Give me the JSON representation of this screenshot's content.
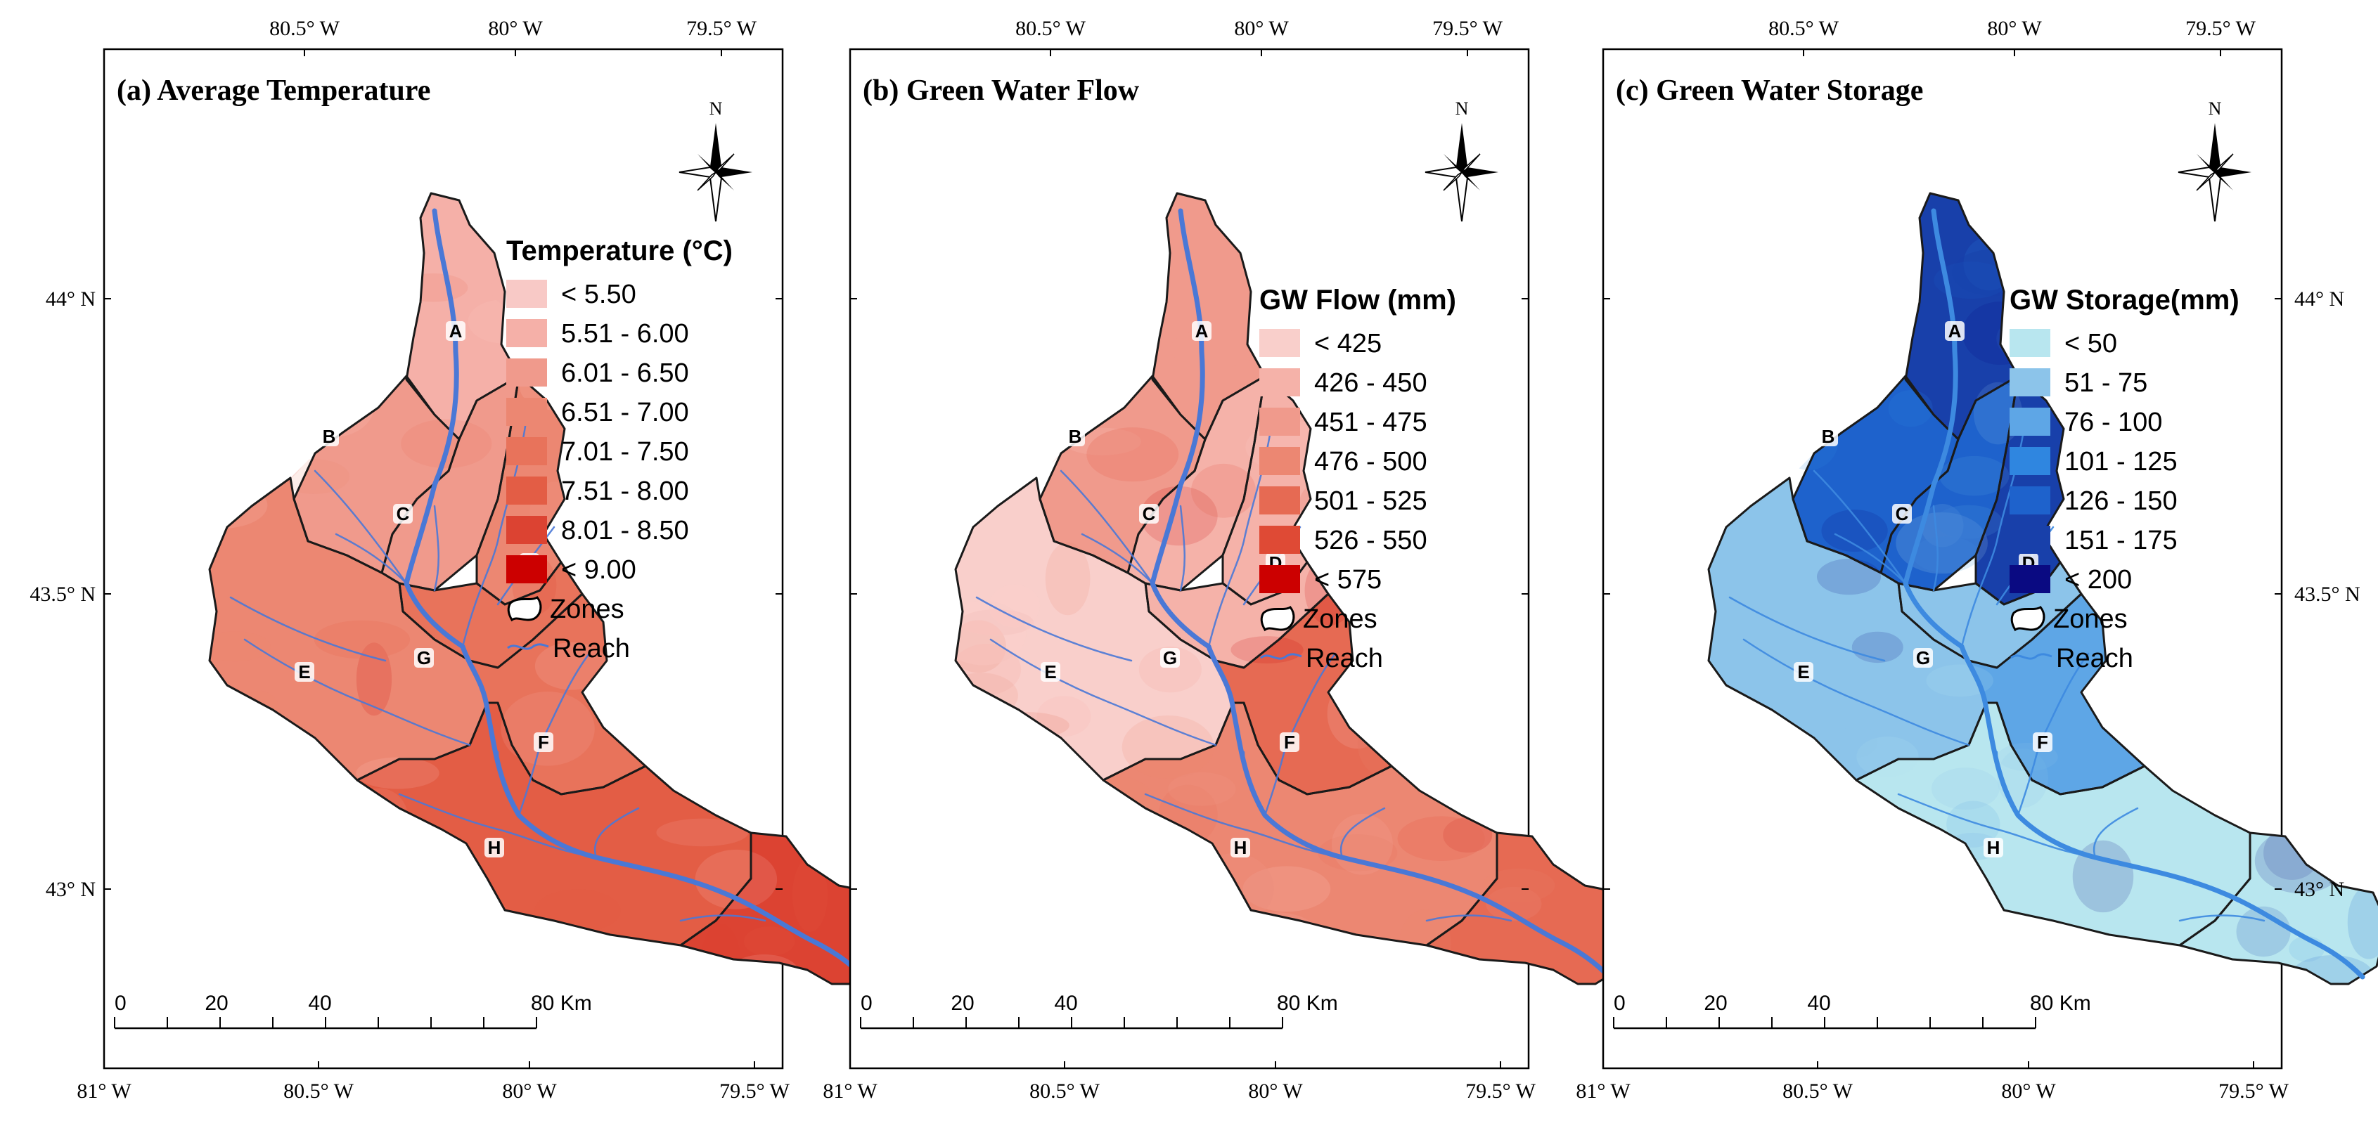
{
  "panels": [
    {
      "key": "a",
      "title": "(a) Average Temperature",
      "legend_title": "Temperature (°C)",
      "classes": [
        "< 5.50",
        "5.51 - 6.00",
        "6.01 - 6.50",
        "6.51 - 7.00",
        "7.01 - 7.50",
        "7.51 - 8.00",
        "8.01 - 8.50",
        "< 9.00"
      ],
      "palette": [
        "#f8c9c6",
        "#f5b0a8",
        "#f09a8c",
        "#ec8772",
        "#e8735b",
        "#e35d45",
        "#dc4332",
        "#cc0000"
      ],
      "reach_color": "#4a78d6",
      "top_ticks": [
        "80.5° W",
        "80° W",
        "79.5° W"
      ],
      "bottom_ticks": [
        "81° W",
        "80.5° W",
        "80° W",
        "79.5° W"
      ],
      "left_ticks": [
        "44° N",
        "43.5° N",
        "43° N"
      ],
      "right_ticks": [],
      "scale_labels": [
        "0",
        "20",
        "40",
        "80 Km"
      ],
      "zones_label": "Zones",
      "reach_label": "Reach",
      "north_label": "N"
    },
    {
      "key": "b",
      "title": "(b) Green Water Flow",
      "legend_title": "GW Flow (mm)",
      "classes": [
        "< 425",
        "426 - 450",
        "451 - 475",
        "476 - 500",
        "501 - 525",
        "526 - 550",
        "< 575"
      ],
      "palette": [
        "#f9cfcb",
        "#f5b2a9",
        "#f09a8c",
        "#ec8772",
        "#e66a53",
        "#df4a35",
        "#cc0000"
      ],
      "reach_color": "#4a78d6",
      "top_ticks": [
        "80.5° W",
        "80° W",
        "79.5° W"
      ],
      "bottom_ticks": [
        "81° W",
        "80.5° W",
        "80° W",
        "79.5° W"
      ],
      "left_ticks": [],
      "right_ticks": [],
      "scale_labels": [
        "0",
        "20",
        "40",
        "80 Km"
      ],
      "zones_label": "Zones",
      "reach_label": "Reach",
      "north_label": "N"
    },
    {
      "key": "c",
      "title": "(c) Green Water Storage",
      "legend_title": "GW Storage(mm)",
      "classes": [
        "< 50",
        "51 - 75",
        "76 - 100",
        "101 - 125",
        "126 - 150",
        "151 - 175",
        "< 200"
      ],
      "palette": [
        "#b8e6ef",
        "#8cc4ea",
        "#5ea6e6",
        "#2f86e0",
        "#1e62cc",
        "#1840aa",
        "#0a0a82"
      ],
      "reach_color": "#3d8ae0",
      "top_ticks": [
        "80.5° W",
        "80° W",
        "79.5° W"
      ],
      "bottom_ticks": [
        "81° W",
        "80.5° W",
        "80° W",
        "79.5° W"
      ],
      "left_ticks": [],
      "right_ticks": [
        "44° N",
        "43.5° N",
        "43° N"
      ],
      "scale_labels": [
        "0",
        "20",
        "40",
        "80 Km"
      ],
      "zones_label": "Zones",
      "reach_label": "Reach",
      "north_label": "N"
    }
  ],
  "zones": [
    "A",
    "B",
    "C",
    "D",
    "E",
    "F",
    "G",
    "H"
  ],
  "zone_classes": {
    "a": {
      "A": 1,
      "B": 2,
      "C": 2,
      "D": 3,
      "E": 3,
      "F": 4,
      "G": 4,
      "H": 5,
      "tail": 6
    },
    "b": {
      "A": 2,
      "B": 2,
      "C": 1,
      "D": 1,
      "E": 0,
      "F": 4,
      "G": 1,
      "H": 3,
      "tail": 4
    },
    "c": {
      "A": 5,
      "B": 4,
      "C": 4,
      "D": 5,
      "E": 1,
      "F": 2,
      "G": 1,
      "H": 0,
      "tail": 0
    }
  }
}
